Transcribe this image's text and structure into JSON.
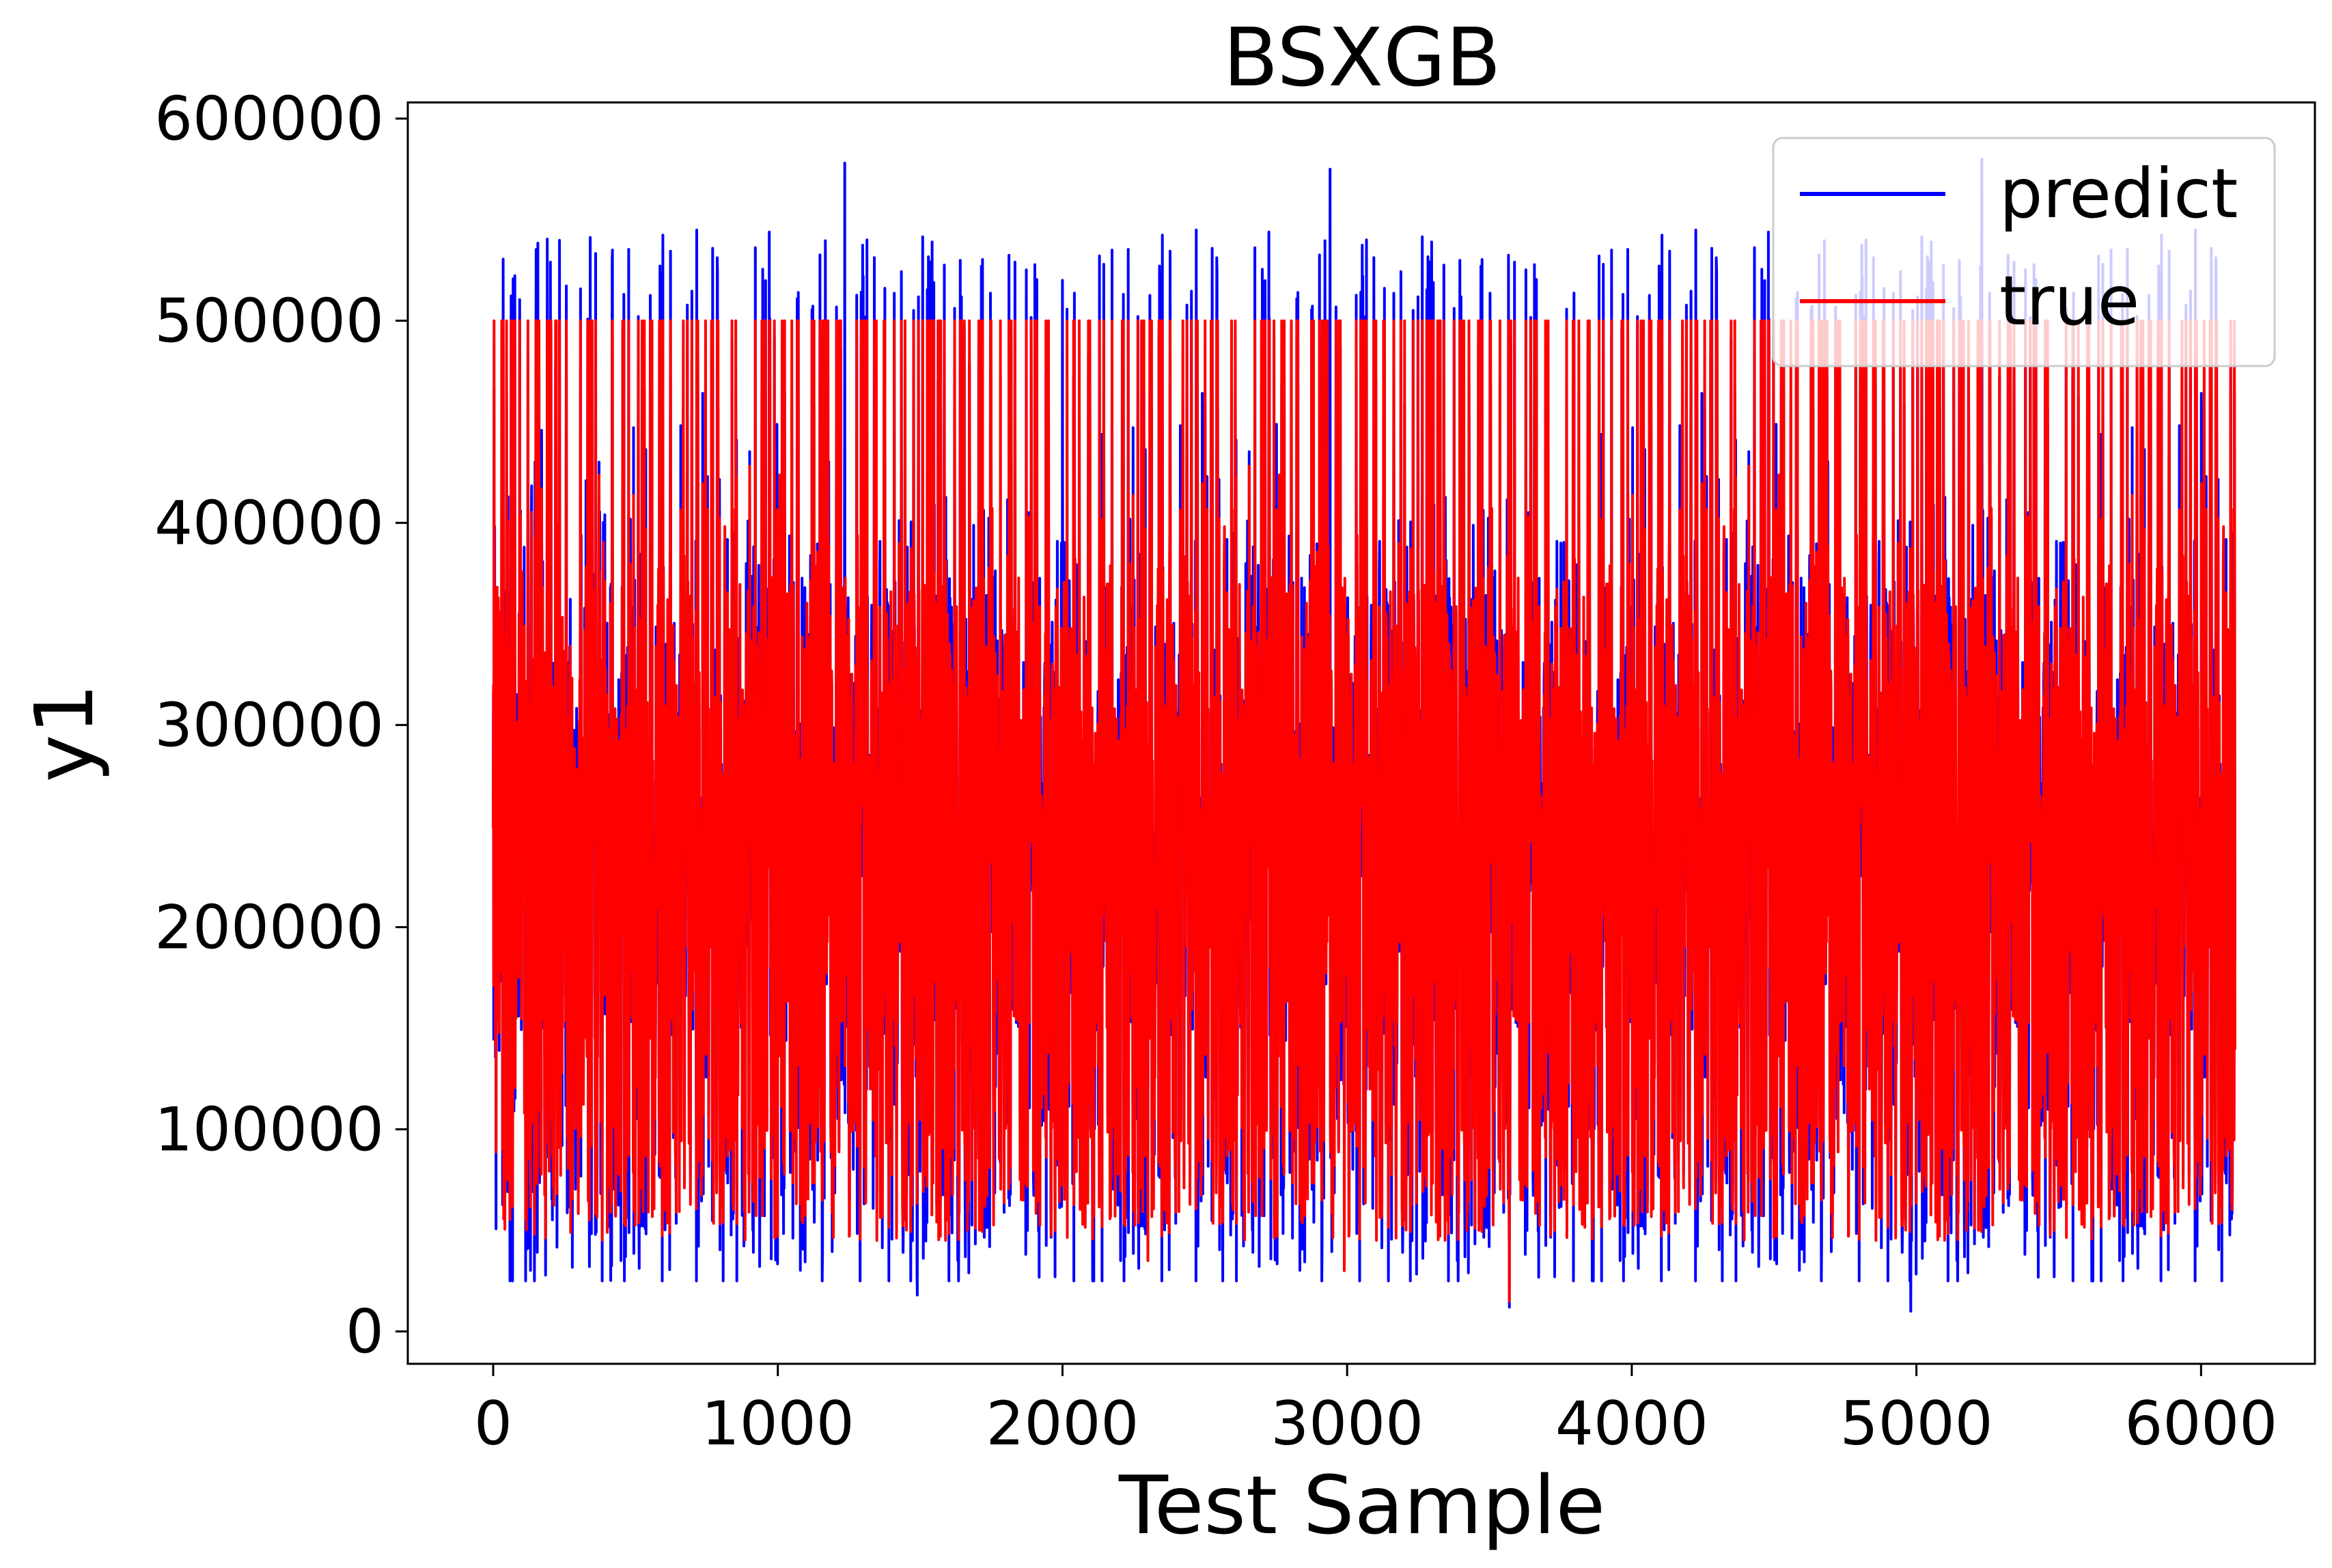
{
  "chart_data": {
    "type": "line",
    "title": "BSXGB",
    "xlabel": "Test Sample",
    "ylabel": "y1",
    "xlim": [
      -300,
      6400
    ],
    "ylim": [
      -16000,
      608000
    ],
    "xticks": [
      0,
      1000,
      2000,
      3000,
      4000,
      5000,
      6000
    ],
    "yticks": [
      0,
      100000,
      200000,
      300000,
      400000,
      500000,
      600000
    ],
    "n_points": 6120,
    "grid": false,
    "legend_position": "top-right",
    "series": [
      {
        "name": "predict",
        "color": "#0000ff",
        "value_range": [
          10000,
          580000
        ],
        "notable_points": [
          [
            1235,
            578000
          ],
          [
            2000,
            520000
          ],
          [
            2940,
            575000
          ],
          [
            4980,
            10000
          ],
          [
            5230,
            580000
          ],
          [
            3570,
            12000
          ],
          [
            1490,
            18000
          ]
        ]
      },
      {
        "name": "true",
        "color": "#ff0000",
        "value_range": [
          15000,
          500001
        ],
        "notable_points": [
          [
            2990,
            30000
          ],
          [
            3570,
            15000
          ],
          [
            2300,
            35000
          ]
        ]
      }
    ]
  }
}
